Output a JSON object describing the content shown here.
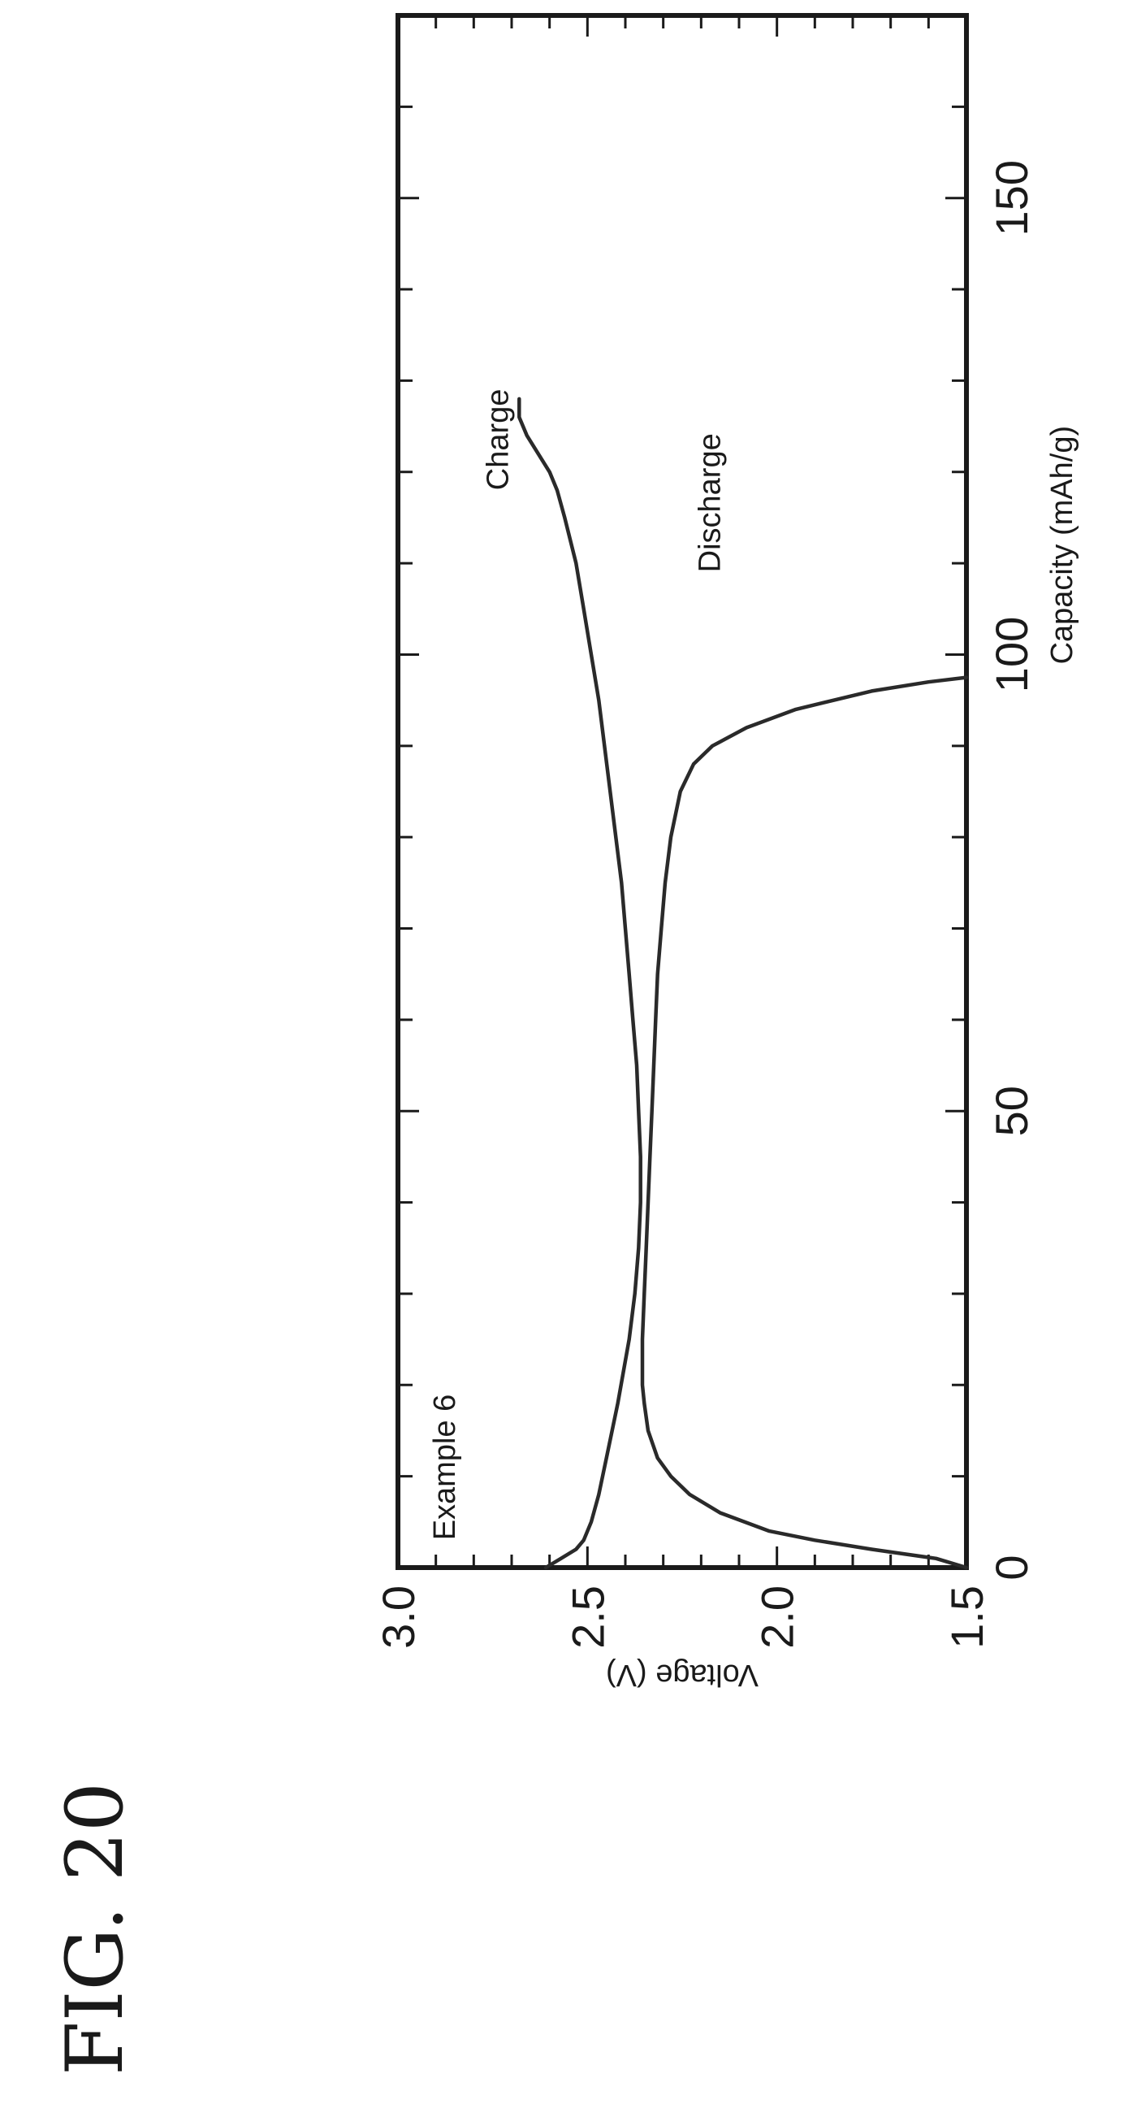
{
  "figure_label": "FIG. 20",
  "chart_data": {
    "type": "line",
    "title": "",
    "xlabel": "Capacity (mAh/g)",
    "ylabel": "Voltage (V)",
    "xlim": [
      0,
      170
    ],
    "ylim": [
      1.5,
      3.0
    ],
    "x_ticks": [
      0,
      50,
      100,
      150
    ],
    "x_tick_labels": [
      "0",
      "50",
      "100",
      "150"
    ],
    "y_ticks": [
      1.5,
      2.0,
      2.5,
      3.0
    ],
    "y_tick_labels": [
      "1.5",
      "2.0",
      "2.5",
      "3.0"
    ],
    "grid": false,
    "annotations": [
      {
        "text": "Example 6",
        "x": 3,
        "y": 2.85
      },
      {
        "text": "Charge",
        "x": 118,
        "y": 2.71
      },
      {
        "text": "Discharge",
        "x": 109,
        "y": 2.15
      }
    ],
    "series": [
      {
        "name": "Charge",
        "x": [
          0,
          1,
          2,
          3,
          5,
          8,
          12,
          18,
          25,
          30,
          35,
          40,
          45,
          50,
          55,
          60,
          65,
          70,
          75,
          80,
          85,
          90,
          95,
          100,
          105,
          110,
          115,
          118,
          120,
          122,
          124,
          126,
          127,
          128
        ],
        "y": [
          2.61,
          2.57,
          2.53,
          2.51,
          2.49,
          2.47,
          2.45,
          2.42,
          2.39,
          2.375,
          2.365,
          2.36,
          2.36,
          2.365,
          2.37,
          2.38,
          2.39,
          2.4,
          2.41,
          2.425,
          2.44,
          2.455,
          2.47,
          2.49,
          2.51,
          2.53,
          2.56,
          2.58,
          2.6,
          2.63,
          2.66,
          2.68,
          2.68,
          2.68
        ]
      },
      {
        "name": "Discharge",
        "x": [
          0,
          1,
          2,
          3,
          4,
          6,
          8,
          10,
          12,
          15,
          18,
          20,
          25,
          30,
          35,
          40,
          45,
          50,
          55,
          60,
          65,
          70,
          75,
          80,
          85,
          88,
          90,
          92,
          94,
          96,
          97,
          97.5
        ],
        "y": [
          1.5,
          1.58,
          1.75,
          1.9,
          2.02,
          2.15,
          2.23,
          2.28,
          2.315,
          2.34,
          2.35,
          2.355,
          2.355,
          2.35,
          2.345,
          2.34,
          2.335,
          2.33,
          2.325,
          2.32,
          2.315,
          2.305,
          2.295,
          2.28,
          2.255,
          2.22,
          2.17,
          2.08,
          1.95,
          1.75,
          1.6,
          1.5
        ]
      }
    ]
  }
}
